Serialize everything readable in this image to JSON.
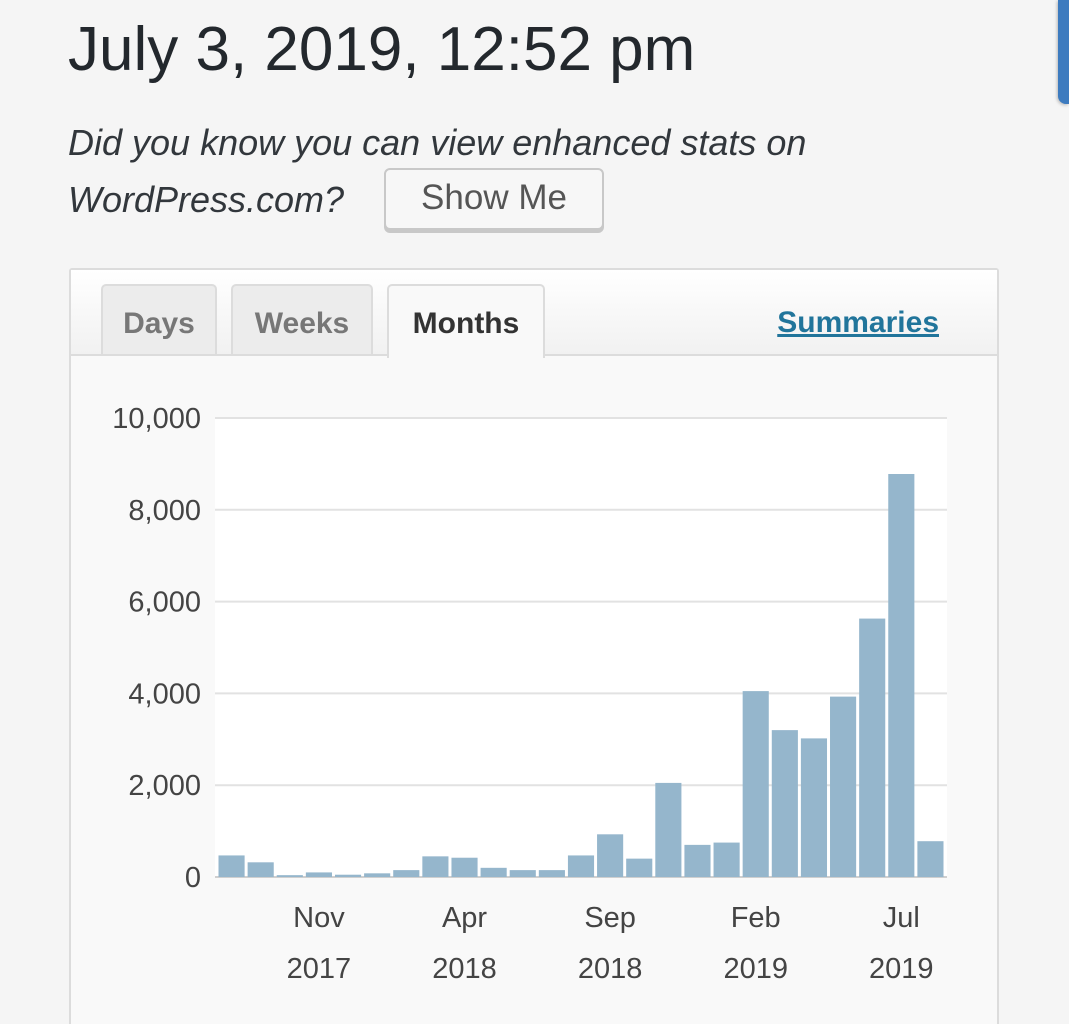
{
  "header": {
    "title": "July 3, 2019, 12:52 pm",
    "promo_text": "Did you know you can view enhanced stats on WordPress.com?",
    "show_me_label": "Show Me"
  },
  "tabs": [
    {
      "label": "Days",
      "active": false
    },
    {
      "label": "Weeks",
      "active": false
    },
    {
      "label": "Months",
      "active": true
    }
  ],
  "summaries_label": "Summaries",
  "colors": {
    "bar": "#95b6cc",
    "link": "#21759b",
    "accent_tab": "#3d7bbf"
  },
  "chart_data": {
    "type": "bar",
    "months": [
      "Aug 2017",
      "Sep 2017",
      "Oct 2017",
      "Nov 2017",
      "Dec 2017",
      "Jan 2018",
      "Feb 2018",
      "Mar 2018",
      "Apr 2018",
      "May 2018",
      "Jun 2018",
      "Jul 2018",
      "Aug 2018",
      "Sep 2018",
      "Oct 2018",
      "Nov 2018",
      "Dec 2018",
      "Jan 2019",
      "Feb 2019",
      "Mar 2019",
      "Apr 2019",
      "May 2019",
      "Jun 2019",
      "Jul 2019",
      "Aug 2019"
    ],
    "values": [
      470,
      320,
      40,
      100,
      50,
      80,
      150,
      450,
      420,
      200,
      150,
      150,
      470,
      930,
      400,
      2050,
      700,
      750,
      4050,
      3200,
      3020,
      3930,
      5630,
      8780,
      780
    ],
    "x_ticks": [
      {
        "index": 3,
        "month": "Nov",
        "year": "2017"
      },
      {
        "index": 8,
        "month": "Apr",
        "year": "2018"
      },
      {
        "index": 13,
        "month": "Sep",
        "year": "2018"
      },
      {
        "index": 18,
        "month": "Feb",
        "year": "2019"
      },
      {
        "index": 23,
        "month": "Jul",
        "year": "2019"
      }
    ],
    "y_ticks": [
      "0",
      "2,000",
      "4,000",
      "6,000",
      "8,000",
      "10,000"
    ],
    "y_tick_values": [
      0,
      2000,
      4000,
      6000,
      8000,
      10000
    ],
    "ylim": [
      0,
      10000
    ],
    "grid": true,
    "legend": "none"
  }
}
